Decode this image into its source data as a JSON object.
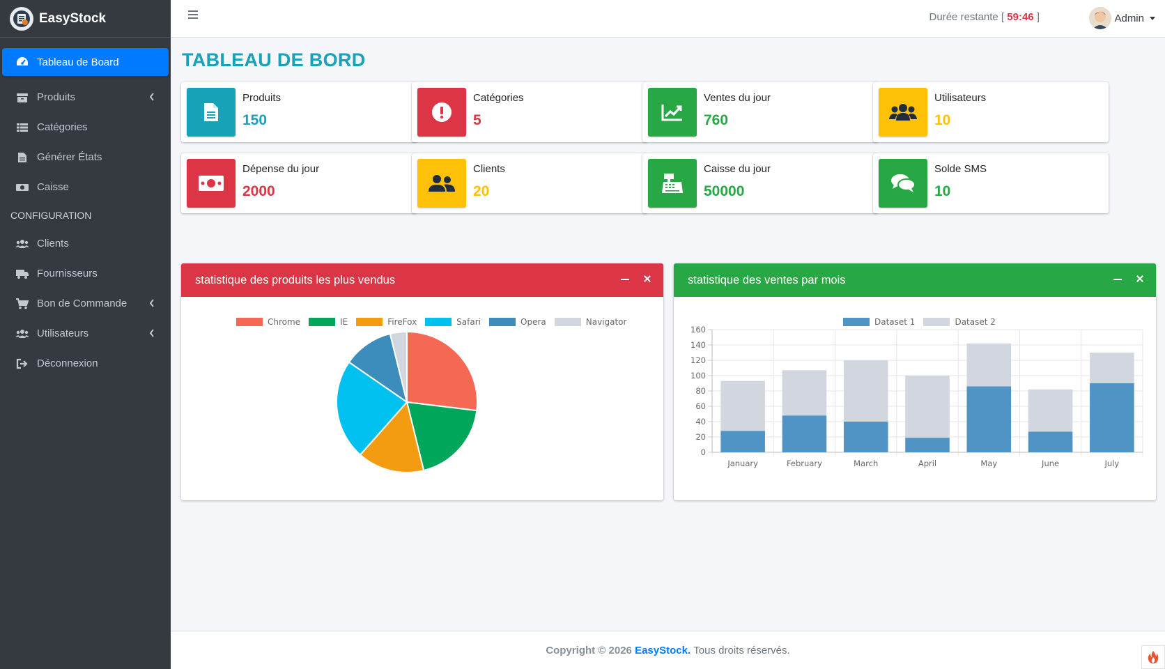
{
  "brand": {
    "name": "EasyStock",
    "logo_icon": "logo-icon"
  },
  "sidebar": {
    "items": [
      {
        "label": "Tableau de Board",
        "icon": "dashboard-icon",
        "active": true,
        "chevron": false
      },
      {
        "label": "Produits",
        "icon": "box-icon",
        "chevron": true
      },
      {
        "label": "Catégories",
        "icon": "list-icon",
        "chevron": false
      },
      {
        "label": "Générer États",
        "icon": "document-icon",
        "chevron": false
      },
      {
        "label": "Caisse",
        "icon": "cash-icon",
        "chevron": false
      }
    ],
    "section_header": "CONFIGURATION",
    "config_items": [
      {
        "label": "Clients",
        "icon": "users-icon",
        "chevron": false
      },
      {
        "label": "Fournisseurs",
        "icon": "truck-icon",
        "chevron": false
      },
      {
        "label": "Bon de Commande",
        "icon": "cart-icon",
        "chevron": true
      },
      {
        "label": "Utilisateurs",
        "icon": "users-icon",
        "chevron": true
      },
      {
        "label": "Déconnexion",
        "icon": "logout-icon",
        "chevron": false
      }
    ]
  },
  "topbar": {
    "timer_label": "Durée restante [",
    "timer_value": "59:46",
    "timer_close": "]",
    "user_name": "Admin"
  },
  "page": {
    "title": "TABLEAU DE BORD"
  },
  "info_boxes": [
    {
      "label": "Produits",
      "value": "150",
      "color": "#17a2b8",
      "icon": "file-icon"
    },
    {
      "label": "Catégories",
      "value": "5",
      "color": "#dc3545",
      "icon": "alert-icon"
    },
    {
      "label": "Ventes du jour",
      "value": "760",
      "color": "#28a745",
      "icon": "chart-line-icon"
    },
    {
      "label": "Utilisateurs",
      "value": "10",
      "color": "#ffc107",
      "icon": "users-icon"
    },
    {
      "label": "Dépense du jour",
      "value": "2000",
      "color": "#dc3545",
      "icon": "money-icon"
    },
    {
      "label": "Clients",
      "value": "20",
      "color": "#ffc107",
      "icon": "user-friends-icon"
    },
    {
      "label": "Caisse du jour",
      "value": "50000",
      "color": "#28a745",
      "icon": "cash-register-icon"
    },
    {
      "label": "Solde SMS",
      "value": "10",
      "color": "#28a745",
      "icon": "comments-icon"
    }
  ],
  "cards": {
    "pie_title": "statistique des produits les plus vendus",
    "bar_title": "statistique des ventes par mois",
    "pie_color": "#dc3545",
    "bar_color": "#28a745"
  },
  "chart_data": [
    {
      "type": "pie",
      "categories": [
        "Chrome",
        "IE",
        "FireFox",
        "Safari",
        "Opera",
        "Navigator"
      ],
      "values": [
        700,
        500,
        400,
        600,
        300,
        100
      ],
      "colors": [
        "#f56954",
        "#00a65a",
        "#f39c12",
        "#00c0ef",
        "#3c8dbc",
        "#d2d6de"
      ],
      "legend_position": "top"
    },
    {
      "type": "bar",
      "stacked": true,
      "categories": [
        "January",
        "February",
        "March",
        "April",
        "May",
        "June",
        "July"
      ],
      "series": [
        {
          "name": "Dataset 1",
          "values": [
            28,
            48,
            40,
            19,
            86,
            27,
            90
          ],
          "color": "#4f94c4"
        },
        {
          "name": "Dataset 2",
          "values": [
            65,
            59,
            80,
            81,
            56,
            55,
            40
          ],
          "color": "#d2d6de"
        }
      ],
      "ylim": [
        0,
        160
      ],
      "yticks": [
        0,
        20,
        40,
        60,
        80,
        100,
        120,
        140,
        160
      ],
      "grid": true,
      "legend_position": "top"
    }
  ],
  "footer": {
    "copyright": "Copyright © 2026",
    "brand": "EasyStock.",
    "rights": "Tous droits réservés."
  }
}
